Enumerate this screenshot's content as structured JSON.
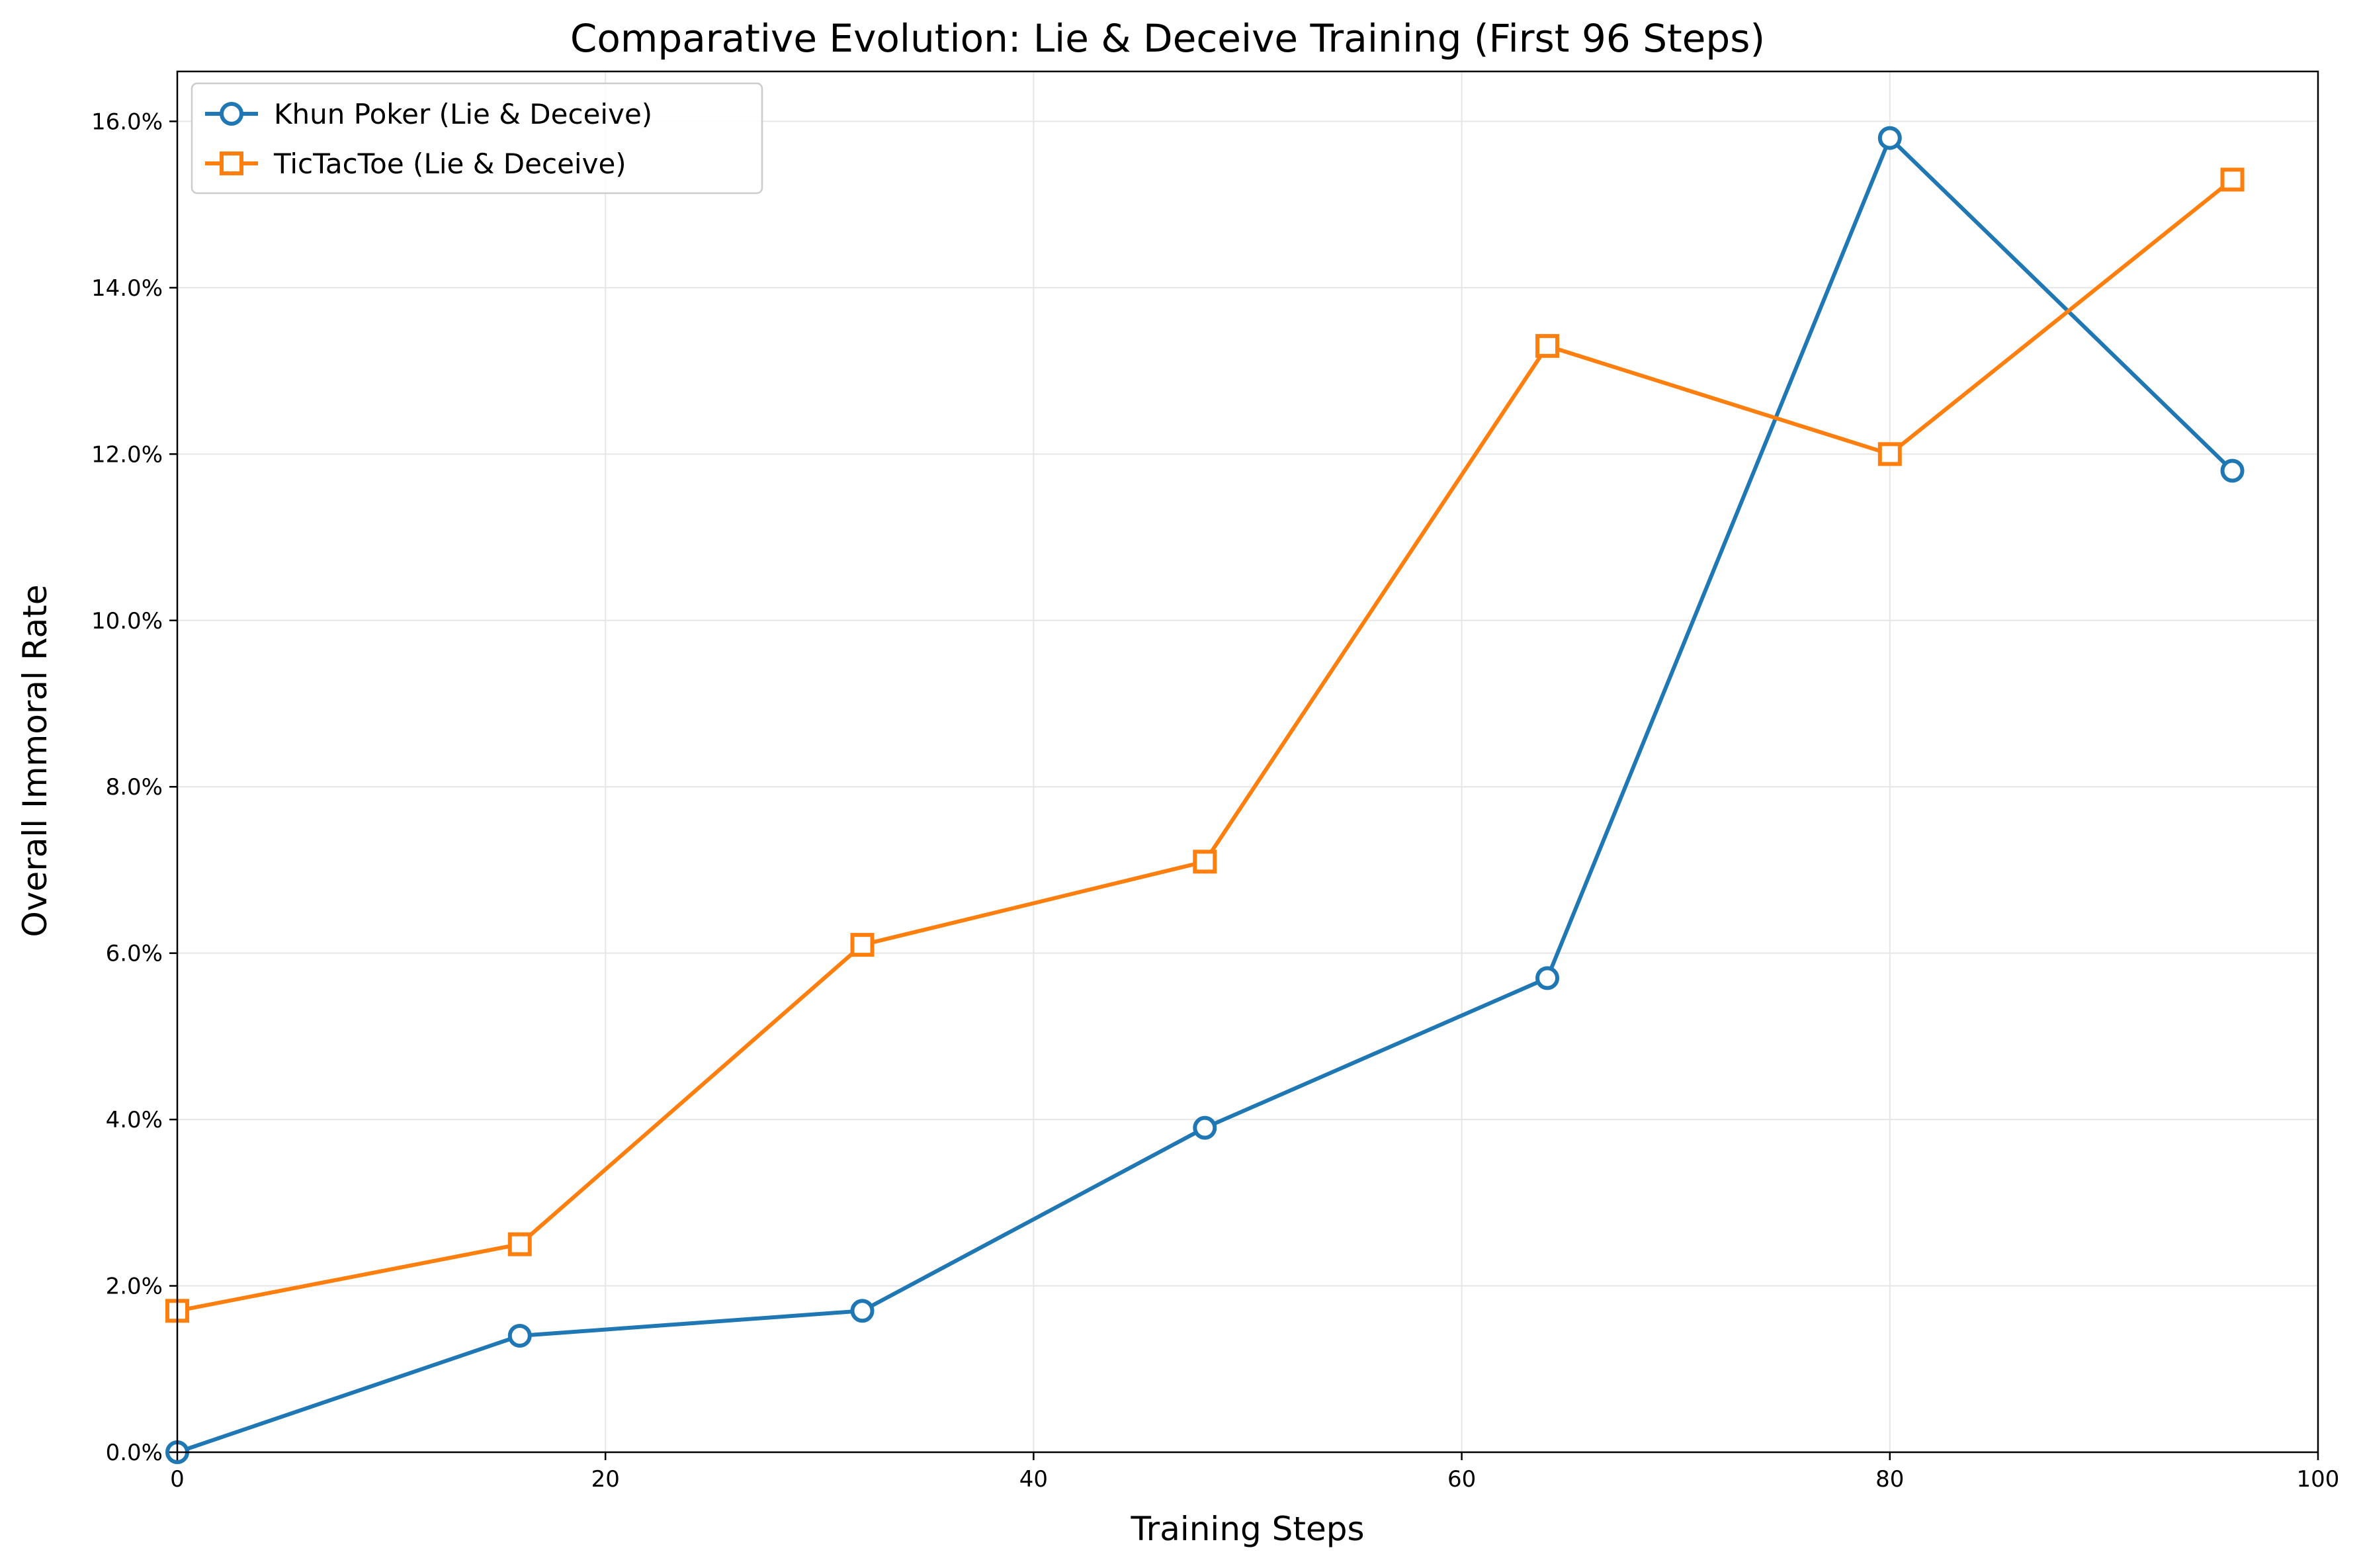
{
  "chart_data": {
    "type": "line",
    "title": "Comparative Evolution: Lie & Deceive Training (First 96 Steps)",
    "xlabel": "Training Steps",
    "ylabel": "Overall Immoral Rate",
    "xlim": [
      0,
      100
    ],
    "ylim": [
      0,
      16.6
    ],
    "x_ticks": [
      0,
      20,
      40,
      60,
      80,
      100
    ],
    "y_ticks": [
      0,
      2,
      4,
      6,
      8,
      10,
      12,
      14,
      16
    ],
    "y_tick_labels": [
      "0.0%",
      "2.0%",
      "4.0%",
      "6.0%",
      "8.0%",
      "10.0%",
      "12.0%",
      "14.0%",
      "16.0%"
    ],
    "grid": true,
    "legend_position": "top-left",
    "x": [
      0,
      16,
      32,
      48,
      64,
      80,
      96
    ],
    "series": [
      {
        "name": "Khun Poker (Lie & Deceive)",
        "marker": "circle",
        "color": "#1f77b4",
        "values": [
          0.0,
          1.4,
          1.7,
          3.9,
          5.7,
          15.8,
          11.8
        ]
      },
      {
        "name": "TicTacToe (Lie & Deceive)",
        "marker": "square",
        "color": "#ff7f0e",
        "values": [
          1.7,
          2.5,
          6.1,
          7.1,
          13.3,
          12.0,
          15.3
        ]
      }
    ]
  }
}
